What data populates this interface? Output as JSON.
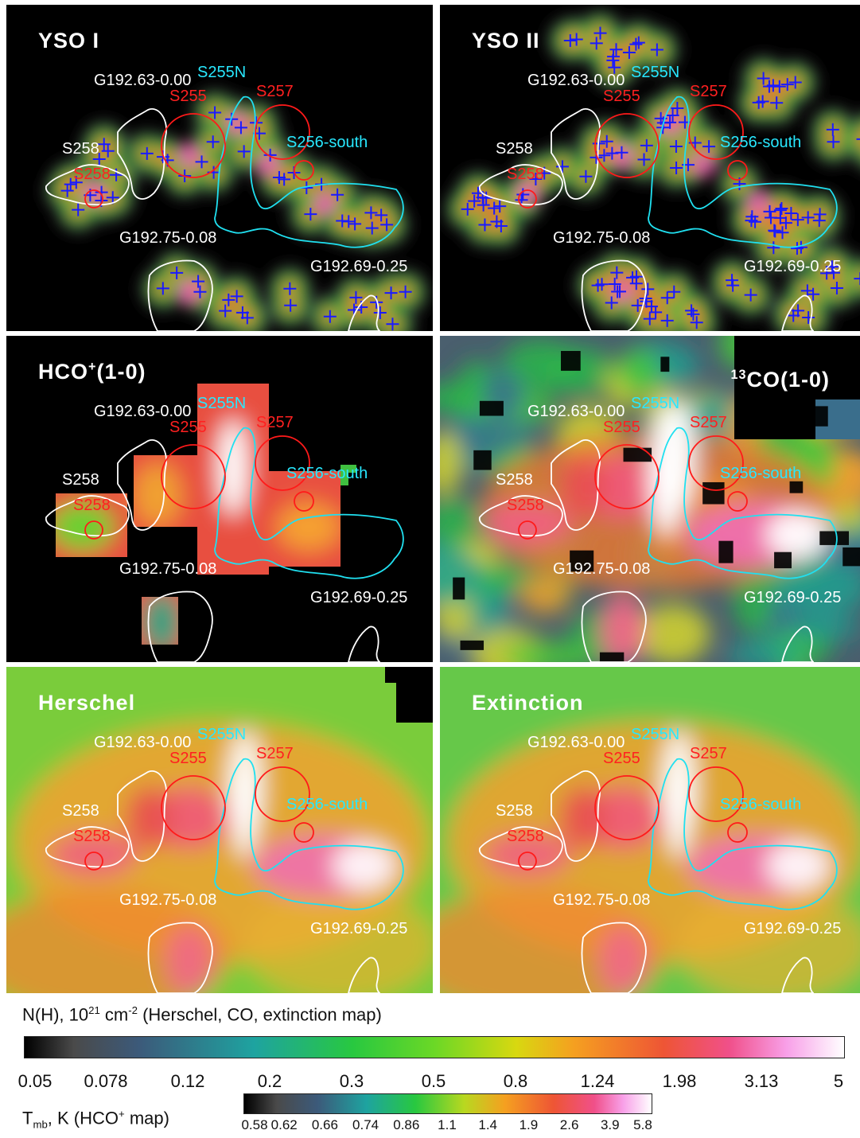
{
  "panels": [
    {
      "id": "yso1",
      "title": "YSO I",
      "style": "yso"
    },
    {
      "id": "yso2",
      "title": "YSO II",
      "style": "yso"
    },
    {
      "id": "hco",
      "title_main": "HCO",
      "title_sup": "+",
      "title_rest": "(1-0)",
      "style": "hco"
    },
    {
      "id": "co13",
      "title_sup": "13",
      "title_main": "CO(1-0)",
      "style": "co"
    },
    {
      "id": "herschel",
      "title": "Herschel",
      "style": "smooth"
    },
    {
      "id": "extinction",
      "title": "Extinction",
      "style": "smooth"
    }
  ],
  "labels": {
    "g19263": "G192.63-0.00",
    "s255n": "S255N",
    "s255": "S255",
    "s257": "S257",
    "s258_white": "S258",
    "s258_red": "S258",
    "s256south": "S256-south",
    "g19275": "G192.75-0.08",
    "g19269": "G192.69-0.25"
  },
  "colorbar_nh": {
    "title_pre": "N(H), 10",
    "title_sup1": "21",
    "title_mid": " cm",
    "title_sup2": "-2",
    "title_post": " (Herschel, CO, extinction map)",
    "ticks": [
      "0.05",
      "0.078",
      "0.12",
      "0.2",
      "0.3",
      "0.5",
      "0.8",
      "1.24",
      "1.98",
      "3.13",
      "5"
    ]
  },
  "colorbar_tmb": {
    "title_pre": "T",
    "title_sub": "mb",
    "title_mid": ", K (HCO",
    "title_sup": "+",
    "title_post": " map)",
    "ticks": [
      "0.58",
      "0.62",
      "0.66",
      "0.74",
      "0.86",
      "1.1",
      "1.4",
      "1.9",
      "2.6",
      "3.9",
      "5.8"
    ]
  },
  "colors": {
    "contour_white": "#ffffff",
    "contour_cyan": "#20e0f0",
    "circle_red": "#ff1a1a",
    "yso_marker": "#1a1aff"
  }
}
